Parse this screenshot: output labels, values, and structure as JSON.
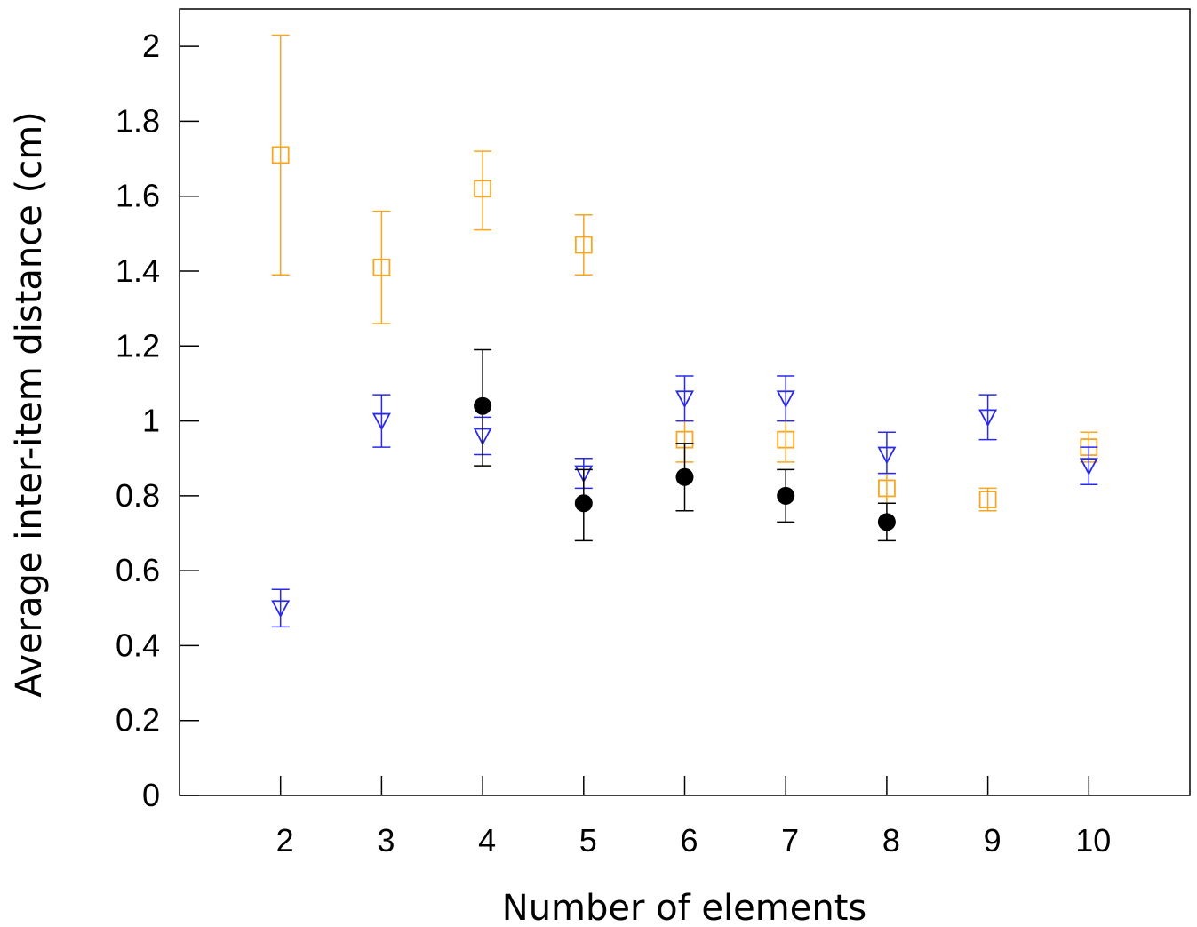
{
  "chart_data": {
    "type": "scatter",
    "title": "",
    "xlabel": "Number of elements",
    "ylabel": "Average inter-item distance (cm)",
    "xlim": [
      1,
      11
    ],
    "ylim": [
      0,
      2.1
    ],
    "xticks": [
      2,
      3,
      4,
      5,
      6,
      7,
      8,
      9,
      10
    ],
    "yticks": [
      0,
      0.2,
      0.4,
      0.6,
      0.8,
      1,
      1.2,
      1.4,
      1.6,
      1.8,
      2
    ],
    "ytick_labels": [
      "0",
      "0.2",
      "0.4",
      "0.6",
      "0.8",
      "1",
      "1.2",
      "1.4",
      "1.6",
      "1.8",
      "2"
    ],
    "grid": false,
    "legend": "none",
    "series": [
      {
        "marker": "open-square",
        "color": "#f5a623",
        "points": [
          {
            "x": 2,
            "y": 1.71,
            "lo": 1.39,
            "hi": 2.03
          },
          {
            "x": 3,
            "y": 1.41,
            "lo": 1.26,
            "hi": 1.56
          },
          {
            "x": 4,
            "y": 1.62,
            "lo": 1.51,
            "hi": 1.72
          },
          {
            "x": 5,
            "y": 1.47,
            "lo": 1.39,
            "hi": 1.55
          },
          {
            "x": 6,
            "y": 0.95,
            "lo": 0.89,
            "hi": 1.0
          },
          {
            "x": 7,
            "y": 0.95,
            "lo": 0.89,
            "hi": 1.0
          },
          {
            "x": 8,
            "y": 0.82,
            "lo": 0.78,
            "hi": 0.86
          },
          {
            "x": 9,
            "y": 0.79,
            "lo": 0.76,
            "hi": 0.82
          },
          {
            "x": 10,
            "y": 0.93,
            "lo": 0.89,
            "hi": 0.97
          }
        ]
      },
      {
        "marker": "open-triangle-down",
        "color": "#2a2ae8",
        "points": [
          {
            "x": 2,
            "y": 0.5,
            "lo": 0.45,
            "hi": 0.55
          },
          {
            "x": 3,
            "y": 1.0,
            "lo": 0.93,
            "hi": 1.07
          },
          {
            "x": 4,
            "y": 0.96,
            "lo": 0.91,
            "hi": 1.01
          },
          {
            "x": 5,
            "y": 0.86,
            "lo": 0.82,
            "hi": 0.9
          },
          {
            "x": 6,
            "y": 1.06,
            "lo": 1.0,
            "hi": 1.12
          },
          {
            "x": 7,
            "y": 1.06,
            "lo": 1.0,
            "hi": 1.12
          },
          {
            "x": 8,
            "y": 0.91,
            "lo": 0.86,
            "hi": 0.97
          },
          {
            "x": 9,
            "y": 1.01,
            "lo": 0.95,
            "hi": 1.07
          },
          {
            "x": 10,
            "y": 0.88,
            "lo": 0.83,
            "hi": 0.93
          }
        ]
      },
      {
        "marker": "filled-circle",
        "color": "#000000",
        "points": [
          {
            "x": 4,
            "y": 1.04,
            "lo": 0.88,
            "hi": 1.19
          },
          {
            "x": 5,
            "y": 0.78,
            "lo": 0.68,
            "hi": 0.87
          },
          {
            "x": 6,
            "y": 0.85,
            "lo": 0.76,
            "hi": 0.94
          },
          {
            "x": 7,
            "y": 0.8,
            "lo": 0.73,
            "hi": 0.87
          },
          {
            "x": 8,
            "y": 0.73,
            "lo": 0.68,
            "hi": 0.78
          }
        ]
      }
    ]
  }
}
